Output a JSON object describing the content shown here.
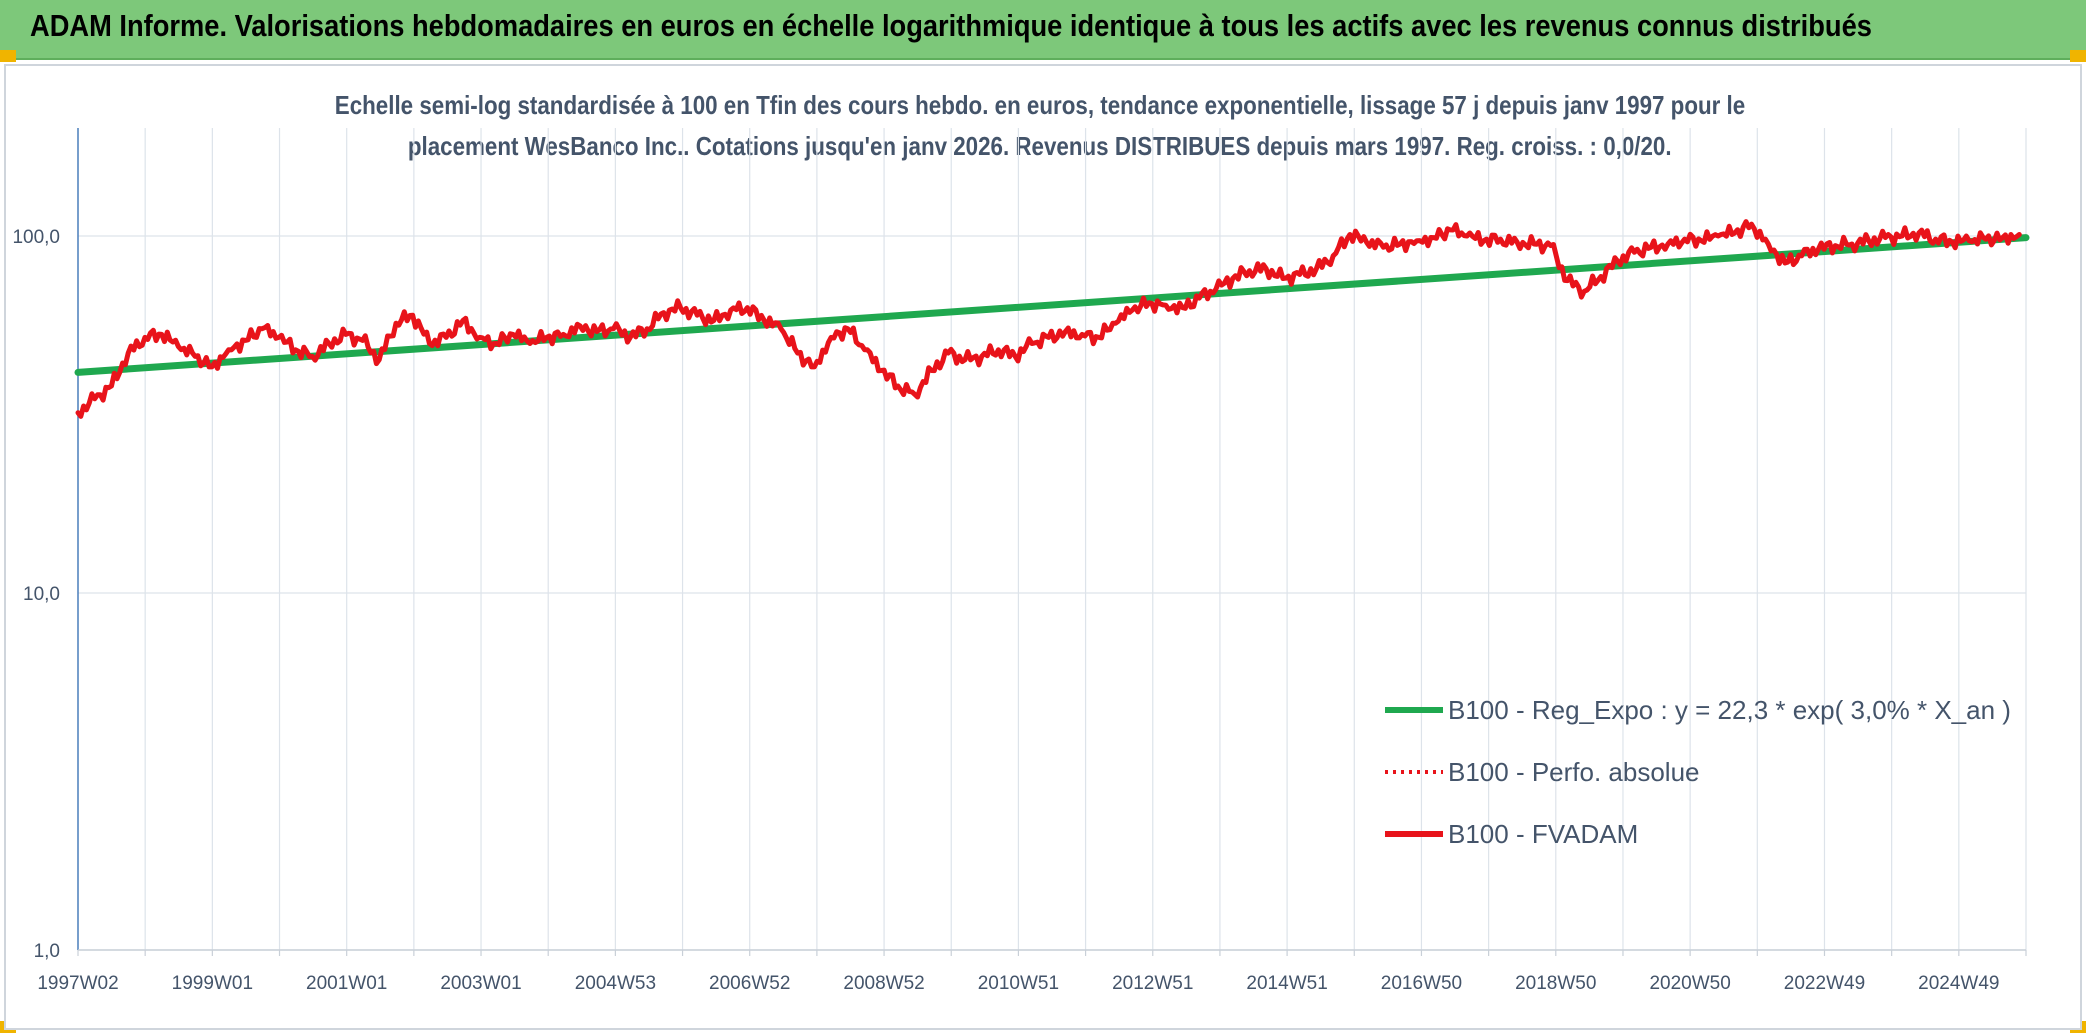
{
  "header": {
    "title": "ADAM Informe. Valorisations hebdomadaires en euros en échelle logarithmique identique à tous les actifs avec les revenus connus distribués"
  },
  "chart_data": {
    "type": "line",
    "title_line1": "Echelle semi-log standardisée à 100 en Tfin des cours hebdo. en euros, tendance exponentielle, lissage 57 j depuis janv 1997 pour le",
    "title_line2": "placement WesBanco Inc.. Cotations jusqu'en janv 2026. Revenus DISTRIBUES depuis mars 1997. Reg. croiss. : 0,0/20.",
    "y_scale": "log",
    "ylim": [
      1,
      200
    ],
    "y_ticks": [
      {
        "value": 100,
        "label": "100,0"
      },
      {
        "value": 10,
        "label": "10,0"
      },
      {
        "value": 1,
        "label": "1,0"
      }
    ],
    "x_labels": [
      "1997W02",
      "1999W01",
      "2001W01",
      "2003W01",
      "2004W53",
      "2006W52",
      "2008W52",
      "2010W51",
      "2012W51",
      "2014W51",
      "2016W50",
      "2018W50",
      "2020W50",
      "2022W49",
      "2024W49"
    ],
    "xlim": [
      1997.0,
      2026.1
    ],
    "grid": true,
    "legend_position": "bottom-right",
    "series": [
      {
        "name": "B100 - Reg_Expo : y = 22,3 * exp( 3,0% *  X_an )",
        "color": "#1fa84f",
        "style": "solid",
        "x": [
          1997.0,
          2026.1
        ],
        "y": [
          41.5,
          99.0
        ]
      },
      {
        "name": "B100 - Perfo. absolue",
        "color": "#e8131a",
        "style": "dotted",
        "x": [],
        "y": []
      },
      {
        "name": "B100 - FVADAM",
        "color": "#e8131a",
        "style": "solid",
        "x": [
          1997.0,
          1997.25,
          1997.5,
          1997.75,
          1998.0,
          1998.25,
          1998.5,
          1998.75,
          1999.0,
          1999.25,
          1999.5,
          1999.75,
          2000.0,
          2000.25,
          2000.5,
          2000.75,
          2001.0,
          2001.25,
          2001.5,
          2001.75,
          2002.0,
          2002.25,
          2002.5,
          2002.75,
          2003.0,
          2003.25,
          2003.5,
          2003.75,
          2004.0,
          2004.25,
          2004.5,
          2004.75,
          2005.0,
          2005.25,
          2005.5,
          2005.75,
          2006.0,
          2006.25,
          2006.5,
          2006.75,
          2007.0,
          2007.25,
          2007.5,
          2007.75,
          2008.0,
          2008.25,
          2008.5,
          2008.75,
          2009.0,
          2009.25,
          2009.5,
          2009.75,
          2010.0,
          2010.25,
          2010.5,
          2010.75,
          2011.0,
          2011.25,
          2011.5,
          2011.75,
          2012.0,
          2012.25,
          2012.5,
          2012.75,
          2013.0,
          2013.25,
          2013.5,
          2013.75,
          2014.0,
          2014.25,
          2014.5,
          2014.75,
          2015.0,
          2015.25,
          2015.5,
          2015.75,
          2016.0,
          2016.25,
          2016.5,
          2016.75,
          2017.0,
          2017.25,
          2017.5,
          2017.75,
          2018.0,
          2018.25,
          2018.5,
          2018.75,
          2019.0,
          2019.25,
          2019.5,
          2019.75,
          2020.0,
          2020.25,
          2020.5,
          2020.75,
          2021.0,
          2021.25,
          2021.5,
          2021.75,
          2022.0,
          2022.25,
          2022.5,
          2022.75,
          2023.0,
          2023.25,
          2023.5,
          2023.75,
          2024.0,
          2024.25,
          2024.5,
          2024.75,
          2025.0,
          2025.25,
          2025.5,
          2025.75,
          2026.0
        ],
        "y": [
          32,
          35,
          38,
          47,
          52,
          53,
          49,
          46,
          43,
          48,
          51,
          55,
          52,
          48,
          46,
          50,
          53,
          51,
          45,
          57,
          60,
          50,
          52,
          58,
          52,
          50,
          53,
          50,
          52,
          53,
          56,
          54,
          55,
          52,
          55,
          61,
          63,
          60,
          58,
          62,
          63,
          58,
          55,
          47,
          43,
          52,
          55,
          48,
          42,
          38,
          36,
          42,
          47,
          45,
          46,
          48,
          46,
          50,
          52,
          54,
          53,
          52,
          57,
          62,
          65,
          64,
          63,
          67,
          71,
          76,
          80,
          81,
          76,
          78,
          81,
          88,
          101,
          96,
          93,
          95,
          97,
          99,
          104,
          100,
          97,
          98,
          96,
          95,
          94,
          75,
          70,
          77,
          85,
          90,
          93,
          95,
          98,
          97,
          100,
          102,
          108,
          95,
          84,
          88,
          92,
          94,
          95,
          97,
          99,
          100,
          102,
          98,
          96,
          97,
          98,
          99,
          101
        ]
      }
    ]
  }
}
